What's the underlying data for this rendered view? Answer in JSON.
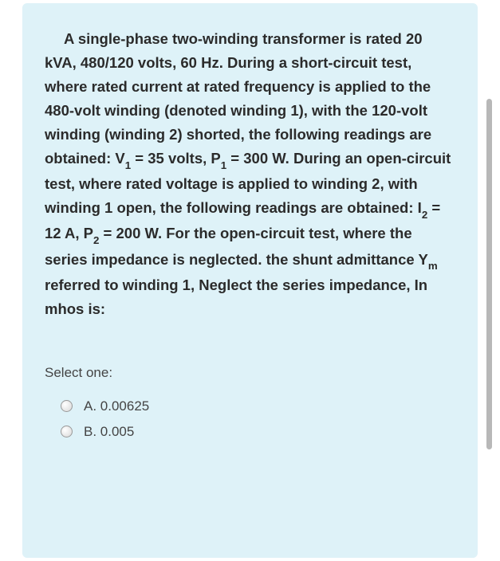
{
  "question": {
    "text_parts": {
      "p1": "A single-phase two-winding transformer is rated 20 kVA, 480/120 volts, 60 Hz. During a short-circuit test, where rated current at rated frequency is applied to the 480-volt winding (denoted winding 1), with the 120-volt winding (winding 2) shorted, the following readings are obtained: V",
      "sub1": "1",
      "p2": " = 35 volts, P",
      "sub2": "1",
      "p3": " = 300 W. During an open-circuit test, where rated voltage is applied to winding 2, with winding 1 open, the following readings are obtained: I",
      "sub3": "2",
      "p4": " = 12 A, P",
      "sub4": "2",
      "p5": " = 200 W. For the open-circuit test, where the series impedance is neglected. the shunt admittance Y",
      "sub5": "m",
      "p6": " referred to winding 1, Neglect the series impedance, In mhos is:"
    }
  },
  "select_label": "Select one:",
  "options": {
    "a": "A. 0.00625",
    "b": "B. 0.005"
  },
  "colors": {
    "card_bg": "#def2f8",
    "text": "#2b2b2b",
    "scrollbar": "#b8b8b8"
  }
}
